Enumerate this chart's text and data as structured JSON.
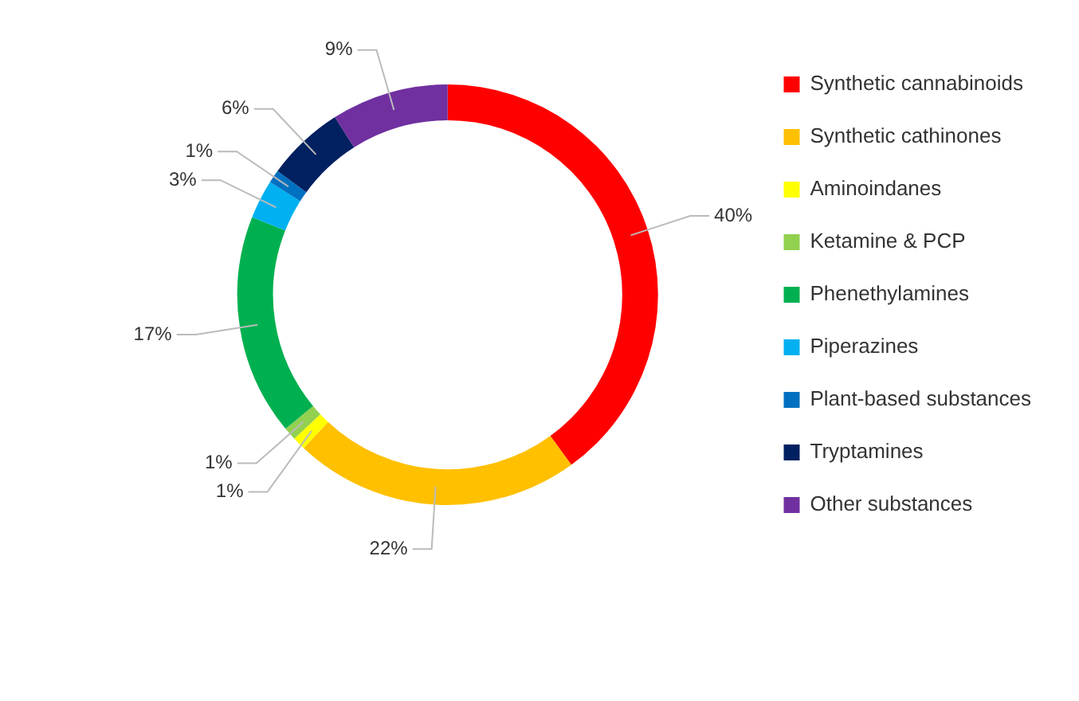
{
  "chart_data": {
    "type": "donut",
    "categories": [
      "Synthetic cannabinoids",
      "Synthetic cathinones",
      "Aminoindanes",
      "Ketamine & PCP",
      "Phenethylamines",
      "Piperazines",
      "Plant-based substances",
      "Tryptamines",
      "Other substances"
    ],
    "values": [
      40,
      22,
      1,
      1,
      17,
      3,
      1,
      6,
      9
    ],
    "colors": [
      "#ff0000",
      "#ffc000",
      "#ffff00",
      "#92d050",
      "#00b050",
      "#00b0f0",
      "#0070c0",
      "#002060",
      "#7030a0"
    ],
    "value_labels": [
      "40%",
      "22%",
      "1%",
      "1%",
      "17%",
      "3%",
      "1%",
      "6%",
      "9%"
    ],
    "legend": "right"
  }
}
